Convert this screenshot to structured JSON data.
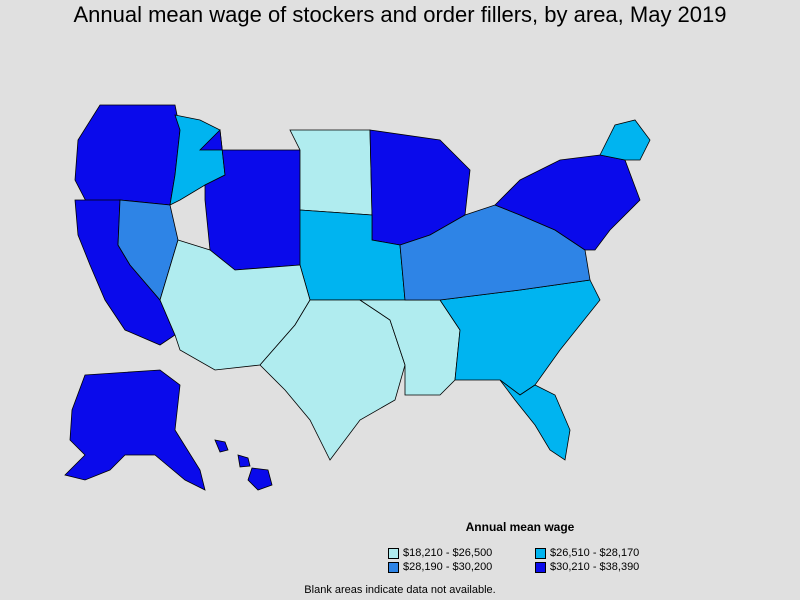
{
  "title": "Annual mean wage of stockers and order fillers, by area, May 2019",
  "legend": {
    "title": "Annual mean wage",
    "items": [
      {
        "label": "$18,210 - $26,500",
        "color": "#b0ecef"
      },
      {
        "label": "$26,510 - $28,170",
        "color": "#00b4f0"
      },
      {
        "label": "$28,190 - $30,200",
        "color": "#2e84e6"
      },
      {
        "label": "$30,210 - $38,390",
        "color": "#0a0aeb"
      }
    ]
  },
  "footnote": "Blank areas indicate data not available.",
  "colors": {
    "background": "#e0e0e0",
    "border": "#000000"
  },
  "regions": [
    {
      "name": "pacific-northwest",
      "class": 3
    },
    {
      "name": "california-coast",
      "class": 3
    },
    {
      "name": "nevada",
      "class": 2
    },
    {
      "name": "idaho-montana-west",
      "class": 1
    },
    {
      "name": "wyoming-colorado",
      "class": 3
    },
    {
      "name": "dakotas-east",
      "class": 0
    },
    {
      "name": "minnesota-wisconsin",
      "class": 3
    },
    {
      "name": "great-plains",
      "class": 1
    },
    {
      "name": "southwest",
      "class": 0
    },
    {
      "name": "texas",
      "class": 0
    },
    {
      "name": "south-central",
      "class": 0
    },
    {
      "name": "southeast",
      "class": 1
    },
    {
      "name": "florida",
      "class": 1
    },
    {
      "name": "midwest",
      "class": 2
    },
    {
      "name": "northeast",
      "class": 3
    },
    {
      "name": "maine",
      "class": 1
    },
    {
      "name": "alaska",
      "class": 3
    },
    {
      "name": "hawaii",
      "class": 3
    }
  ]
}
